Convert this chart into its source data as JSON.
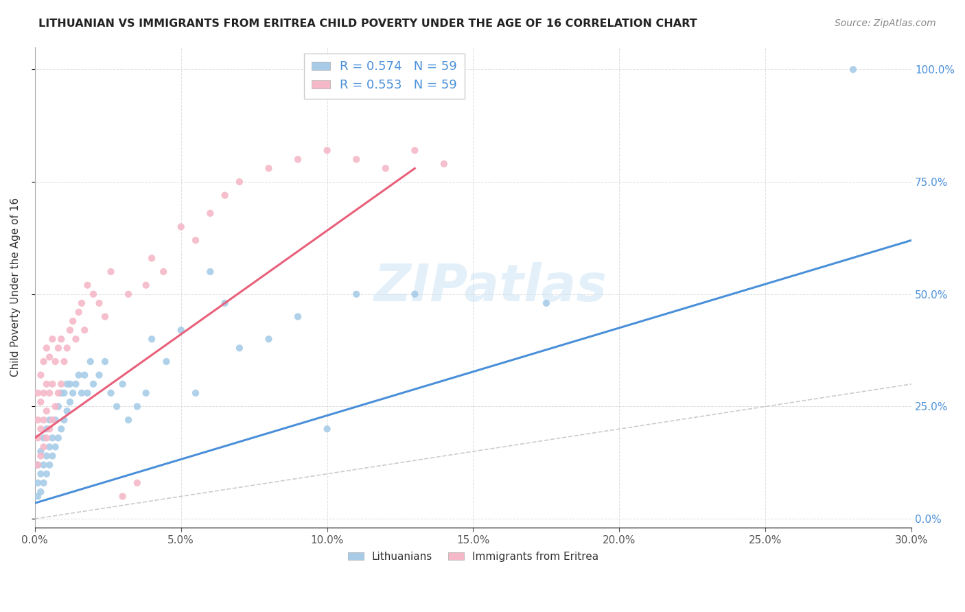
{
  "title": "LITHUANIAN VS IMMIGRANTS FROM ERITREA CHILD POVERTY UNDER THE AGE OF 16 CORRELATION CHART",
  "source": "Source: ZipAtlas.com",
  "ylabel": "Child Poverty Under the Age of 16",
  "xlabel_ticks": [
    "0.0%",
    "5.0%",
    "10.0%",
    "15.0%",
    "20.0%",
    "25.0%",
    "30.0%"
  ],
  "ytick_right_labels": [
    "100.0%",
    "75.0%",
    "50.0%",
    "25.0%",
    "0.0%"
  ],
  "xlim": [
    0.0,
    0.3
  ],
  "ylim": [
    -0.02,
    1.05
  ],
  "legend1_label": "R = 0.574   N = 59",
  "legend2_label": "R = 0.553   N = 59",
  "legend_bottom": "Lithuanians",
  "legend_bottom2": "Immigrants from Eritrea",
  "blue_color": "#a8cce8",
  "pink_color": "#f5b8c8",
  "trendline_blue": "#4a90d9",
  "trendline_pink": "#e8607a",
  "diagonal_color": "#cccccc",
  "blue_scatter_x": [
    0.001,
    0.001,
    0.001,
    0.002,
    0.002,
    0.002,
    0.003,
    0.003,
    0.003,
    0.004,
    0.004,
    0.004,
    0.005,
    0.005,
    0.005,
    0.006,
    0.006,
    0.007,
    0.007,
    0.008,
    0.008,
    0.009,
    0.009,
    0.01,
    0.01,
    0.011,
    0.011,
    0.012,
    0.012,
    0.013,
    0.014,
    0.015,
    0.016,
    0.017,
    0.018,
    0.019,
    0.02,
    0.022,
    0.024,
    0.026,
    0.028,
    0.03,
    0.032,
    0.035,
    0.038,
    0.04,
    0.045,
    0.05,
    0.055,
    0.06,
    0.065,
    0.07,
    0.08,
    0.09,
    0.1,
    0.11,
    0.13,
    0.175,
    0.28
  ],
  "blue_scatter_y": [
    0.05,
    0.08,
    0.12,
    0.06,
    0.1,
    0.15,
    0.08,
    0.12,
    0.18,
    0.1,
    0.14,
    0.2,
    0.12,
    0.16,
    0.22,
    0.14,
    0.18,
    0.16,
    0.22,
    0.18,
    0.25,
    0.2,
    0.28,
    0.22,
    0.28,
    0.24,
    0.3,
    0.26,
    0.3,
    0.28,
    0.3,
    0.32,
    0.28,
    0.32,
    0.28,
    0.35,
    0.3,
    0.32,
    0.35,
    0.28,
    0.25,
    0.3,
    0.22,
    0.25,
    0.28,
    0.4,
    0.35,
    0.42,
    0.28,
    0.55,
    0.48,
    0.38,
    0.4,
    0.45,
    0.2,
    0.5,
    0.5,
    0.48,
    1.0
  ],
  "pink_scatter_x": [
    0.001,
    0.001,
    0.001,
    0.001,
    0.002,
    0.002,
    0.002,
    0.002,
    0.003,
    0.003,
    0.003,
    0.003,
    0.004,
    0.004,
    0.004,
    0.004,
    0.005,
    0.005,
    0.005,
    0.006,
    0.006,
    0.006,
    0.007,
    0.007,
    0.008,
    0.008,
    0.009,
    0.009,
    0.01,
    0.011,
    0.012,
    0.013,
    0.014,
    0.015,
    0.016,
    0.017,
    0.018,
    0.02,
    0.022,
    0.024,
    0.026,
    0.03,
    0.032,
    0.035,
    0.038,
    0.04,
    0.044,
    0.05,
    0.055,
    0.06,
    0.065,
    0.07,
    0.08,
    0.09,
    0.1,
    0.11,
    0.12,
    0.13,
    0.14
  ],
  "pink_scatter_y": [
    0.12,
    0.18,
    0.22,
    0.28,
    0.14,
    0.2,
    0.26,
    0.32,
    0.16,
    0.22,
    0.28,
    0.35,
    0.18,
    0.24,
    0.3,
    0.38,
    0.2,
    0.28,
    0.36,
    0.22,
    0.3,
    0.4,
    0.25,
    0.35,
    0.28,
    0.38,
    0.3,
    0.4,
    0.35,
    0.38,
    0.42,
    0.44,
    0.4,
    0.46,
    0.48,
    0.42,
    0.52,
    0.5,
    0.48,
    0.45,
    0.55,
    0.05,
    0.5,
    0.08,
    0.52,
    0.58,
    0.55,
    0.65,
    0.62,
    0.68,
    0.72,
    0.75,
    0.78,
    0.8,
    0.82,
    0.8,
    0.78,
    0.82,
    0.79
  ]
}
